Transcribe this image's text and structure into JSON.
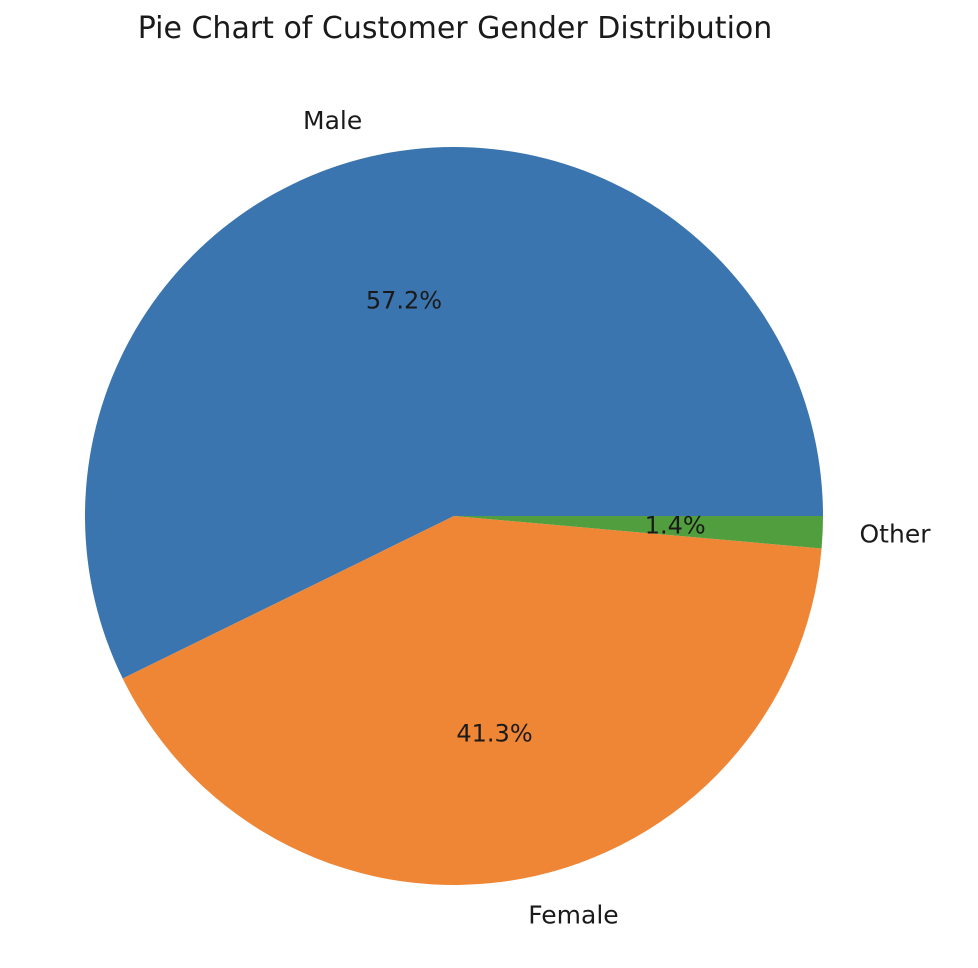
{
  "chart_data": {
    "type": "pie",
    "title": "Pie Chart of Customer Gender Distribution",
    "slices": [
      {
        "label": "Male",
        "value": 57.2,
        "pct_label": "57.2%",
        "color": "#3b75af"
      },
      {
        "label": "Female",
        "value": 41.3,
        "pct_label": "41.3%",
        "color": "#ef8636"
      },
      {
        "label": "Other",
        "value": 1.4,
        "pct_label": "1.4%",
        "color": "#519e3e"
      }
    ],
    "start_angle_deg": 0,
    "direction": "counterclockwise"
  }
}
